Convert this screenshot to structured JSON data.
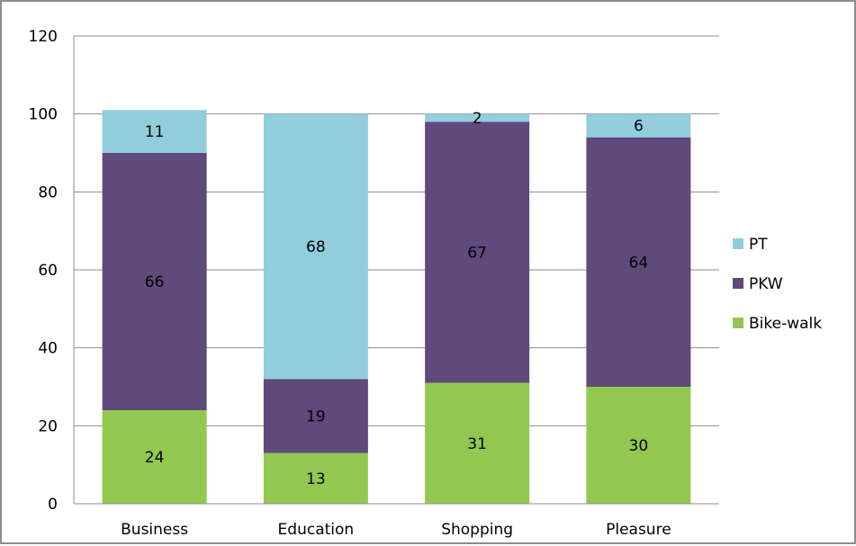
{
  "chart_data": {
    "type": "bar",
    "stacked": true,
    "categories": [
      "Business",
      "Education",
      "Shopping",
      "Pleasure"
    ],
    "series": [
      {
        "name": "Bike-walk",
        "values": [
          24,
          13,
          31,
          30
        ],
        "color": "#92c850"
      },
      {
        "name": "PKW",
        "values": [
          66,
          19,
          67,
          64
        ],
        "color": "#5f4a7b"
      },
      {
        "name": "PT",
        "values": [
          11,
          68,
          2,
          6
        ],
        "color": "#92cddc"
      }
    ],
    "ylim": [
      0,
      120
    ],
    "yticks": [
      0,
      20,
      40,
      60,
      80,
      100,
      120
    ],
    "grid": true,
    "legend_position": "right"
  }
}
